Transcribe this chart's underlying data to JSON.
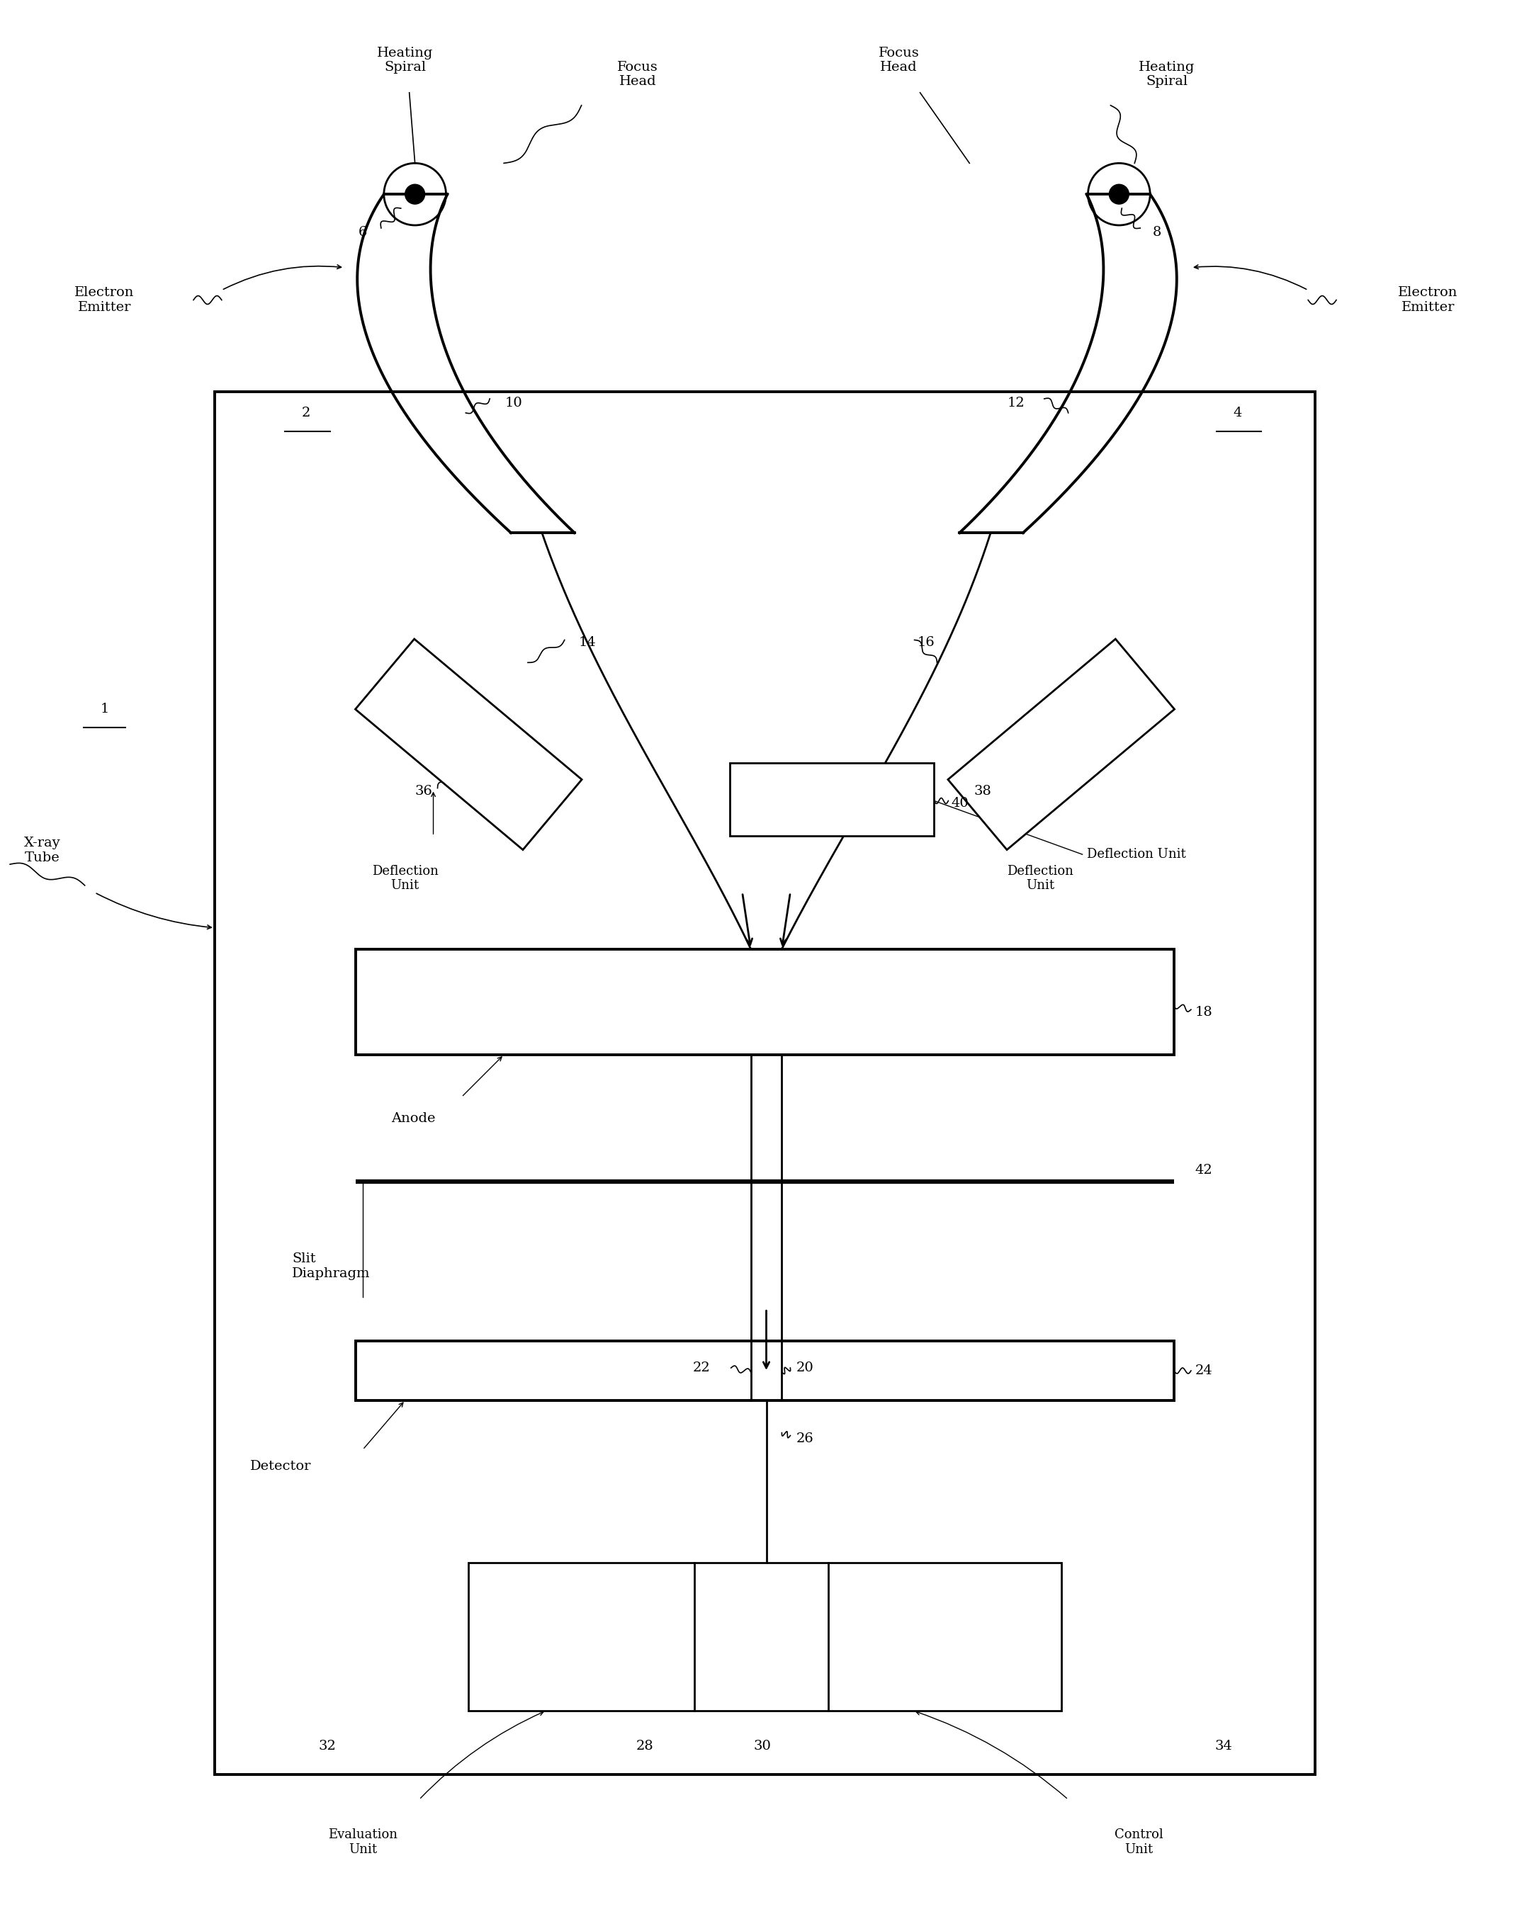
{
  "bg_color": "#ffffff",
  "line_color": "#000000",
  "fig_width": 21.65,
  "fig_height": 27.09,
  "labels": {
    "heating_spiral_left": "Heating\nSpiral",
    "focus_head_left": "Focus\nHead",
    "heating_spiral_right": "Heating\nSpiral",
    "focus_head_right": "Focus\nHead",
    "electron_emitter_left": "Electron\nEmitter",
    "electron_emitter_right": "Electron\nEmitter",
    "xray_tube": "X-ray\nTube",
    "deflection_unit_left": "Deflection\nUnit",
    "deflection_unit_right": "Deflection\nUnit",
    "deflection_unit_center": "Deflection Unit",
    "anode": "Anode",
    "slit_diaphragm": "Slit\nDiaphragm",
    "detector": "Detector",
    "evaluation_unit": "Evaluation\nUnit",
    "control_unit": "Control\nUnit"
  },
  "numbers": [
    "1",
    "2",
    "4",
    "6",
    "8",
    "10",
    "12",
    "14",
    "16",
    "18",
    "20",
    "22",
    "24",
    "26",
    "28",
    "30",
    "32",
    "34",
    "36",
    "38",
    "40",
    "42"
  ]
}
